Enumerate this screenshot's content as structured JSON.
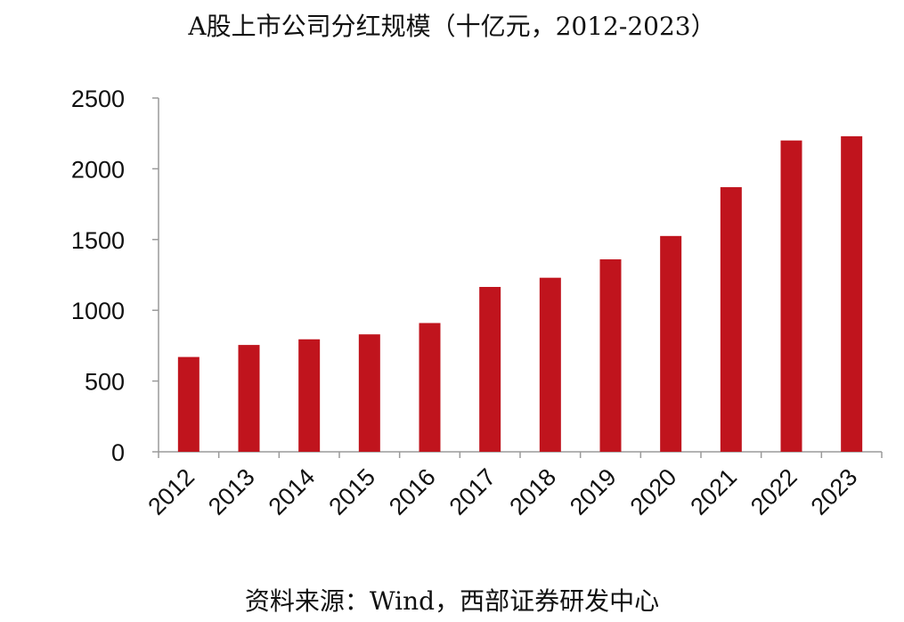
{
  "chart_data": {
    "type": "bar",
    "title": "A股上市公司分红规模（十亿元，2012-2023）",
    "xlabel": "",
    "ylabel": "",
    "categories": [
      "2012",
      "2013",
      "2014",
      "2015",
      "2016",
      "2017",
      "2018",
      "2019",
      "2020",
      "2021",
      "2022",
      "2023"
    ],
    "values": [
      670,
      755,
      795,
      830,
      910,
      1165,
      1230,
      1360,
      1525,
      1870,
      2200,
      2230
    ],
    "ylim": [
      0,
      2500
    ],
    "yticks": [
      0,
      500,
      1000,
      1500,
      2000,
      2500
    ],
    "grid": false,
    "bar_color": "#c0141d"
  },
  "source": "资料来源：Wind，西部证券研发中心"
}
